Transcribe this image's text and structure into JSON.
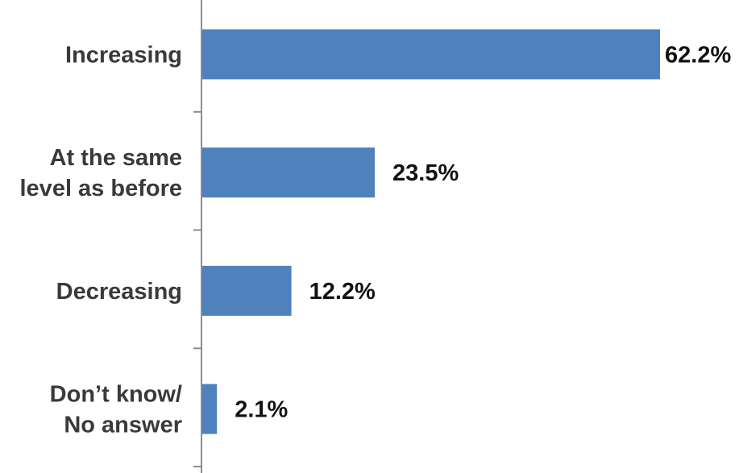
{
  "chart_data": {
    "type": "bar",
    "orientation": "horizontal",
    "title": "",
    "xlabel": "",
    "ylabel": "",
    "categories": [
      [
        "Increasing"
      ],
      [
        "At the same",
        "level as before"
      ],
      [
        "Decreasing"
      ],
      [
        "Don’t know/",
        "No answer"
      ]
    ],
    "values": [
      62.2,
      23.5,
      12.2,
      2.1
    ],
    "value_labels": [
      "62.2%",
      "23.5%",
      "12.2%",
      "2.1%"
    ],
    "xlim": [
      0,
      100
    ],
    "grid": false,
    "legend": "none",
    "bar_color": "#4f81bd",
    "axis_color": "#8c8c8c"
  }
}
